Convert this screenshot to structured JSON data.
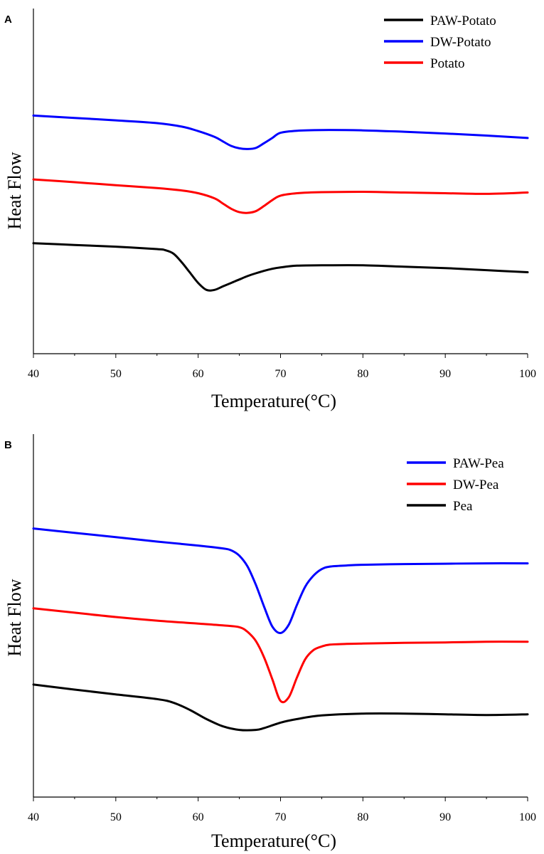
{
  "chart_data": [
    {
      "panel": "A",
      "type": "line",
      "xlabel": "Temperature(°C)",
      "ylabel": "Heat Flow",
      "xlim": [
        40,
        100
      ],
      "ylim": [
        0,
        100
      ],
      "xticks": [
        "40",
        "50",
        "60",
        "70",
        "80",
        "90",
        "100"
      ],
      "legend": "top-right",
      "series": [
        {
          "name": "PAW-Potato",
          "color": "#000000",
          "x": [
            40,
            45,
            50,
            55,
            56,
            57,
            58,
            59,
            60,
            61,
            62,
            63,
            64,
            65,
            66,
            67,
            68,
            69,
            70,
            72,
            75,
            80,
            85,
            90,
            95,
            100
          ],
          "y": [
            32,
            31.5,
            31,
            30.3,
            30,
            29,
            26.5,
            23.5,
            20.5,
            18.5,
            18.5,
            19.5,
            20.5,
            21.5,
            22.5,
            23.3,
            24,
            24.6,
            25,
            25.5,
            25.6,
            25.6,
            25.2,
            24.8,
            24.2,
            23.6
          ]
        },
        {
          "name": "DW-Potato",
          "color": "#0000ff",
          "x": [
            40,
            45,
            50,
            55,
            58,
            60,
            62,
            63,
            64,
            65,
            66,
            67,
            68,
            69,
            70,
            72,
            75,
            80,
            85,
            90,
            95,
            100
          ],
          "y": [
            69,
            68.3,
            67.6,
            66.8,
            65.8,
            64.5,
            62.8,
            61.5,
            60.2,
            59.5,
            59.3,
            59.6,
            61,
            62.5,
            64,
            64.6,
            64.8,
            64.7,
            64.3,
            63.8,
            63.2,
            62.5
          ]
        },
        {
          "name": "Potato",
          "color": "#ff0000",
          "x": [
            40,
            45,
            50,
            55,
            58,
            60,
            62,
            63,
            64,
            65,
            66,
            67,
            68,
            69,
            70,
            72,
            75,
            80,
            85,
            90,
            95,
            100
          ],
          "y": [
            50.5,
            49.7,
            48.8,
            48,
            47.3,
            46.5,
            45,
            43.5,
            42,
            41,
            40.8,
            41.3,
            42.8,
            44.5,
            45.8,
            46.5,
            46.8,
            46.9,
            46.7,
            46.5,
            46.3,
            46.7
          ]
        }
      ]
    },
    {
      "panel": "B",
      "type": "line",
      "xlabel": "Temperature(°C)",
      "ylabel": "Heat Flow",
      "xlim": [
        40,
        100
      ],
      "ylim": [
        0,
        100
      ],
      "xticks": [
        "40",
        "50",
        "60",
        "70",
        "80",
        "90",
        "100"
      ],
      "legend": "top-right",
      "series": [
        {
          "name": "PAW-Pea",
          "color": "#0000ff",
          "x": [
            40,
            45,
            50,
            55,
            60,
            63,
            64,
            65,
            66,
            67,
            68,
            69,
            70,
            71,
            72,
            73,
            74,
            75,
            76,
            78,
            80,
            85,
            90,
            95,
            100
          ],
          "y": [
            74,
            72.8,
            71.6,
            70.4,
            69.3,
            68.5,
            68,
            66.5,
            63.5,
            58.5,
            52.5,
            47,
            45.2,
            47.5,
            53,
            58,
            61,
            62.8,
            63.5,
            63.8,
            64,
            64.2,
            64.3,
            64.4,
            64.4
          ]
        },
        {
          "name": "DW-Pea",
          "color": "#ff0000",
          "x": [
            40,
            45,
            50,
            55,
            60,
            63,
            65,
            66,
            67,
            68,
            69,
            70,
            71,
            72,
            73,
            74,
            75,
            76,
            78,
            80,
            85,
            90,
            95,
            100
          ],
          "y": [
            52,
            50.8,
            49.6,
            48.6,
            47.8,
            47.3,
            46.8,
            45.5,
            43,
            38.5,
            32.5,
            26.5,
            27.5,
            33,
            38,
            40.5,
            41.5,
            42,
            42.2,
            42.3,
            42.5,
            42.6,
            42.8,
            42.8
          ]
        },
        {
          "name": "Pea",
          "color": "#000000",
          "x": [
            40,
            45,
            50,
            55,
            57,
            59,
            61,
            63,
            65,
            67,
            68,
            70,
            72,
            75,
            80,
            85,
            90,
            95,
            100
          ],
          "y": [
            31,
            29.6,
            28.3,
            27,
            26,
            24,
            21.5,
            19.5,
            18.5,
            18.5,
            19,
            20.5,
            21.5,
            22.5,
            23,
            23,
            22.8,
            22.6,
            22.8
          ]
        }
      ]
    }
  ]
}
